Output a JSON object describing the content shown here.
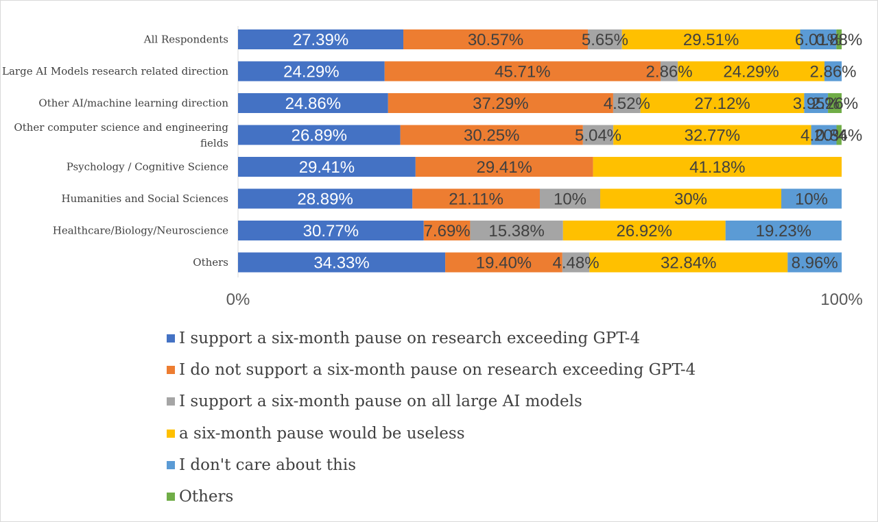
{
  "chart_data": {
    "type": "bar",
    "orientation": "horizontal",
    "stacked": "percent",
    "categories": [
      "All Respondents",
      "Large AI Models research related direction",
      "Other AI/machine learning direction",
      "Other computer science and engineering fields",
      "Psychology / Cognitive Science",
      "Humanities and Social Sciences",
      "Healthcare/Biology/Neuroscience",
      "Others"
    ],
    "series": [
      {
        "name": "I support a six-month pause on research exceeding GPT-4",
        "color": "#4472C4",
        "values": [
          27.39,
          24.29,
          24.86,
          26.89,
          29.41,
          28.89,
          30.77,
          34.33
        ],
        "labels": [
          "27.39%",
          "24.29%",
          "24.86%",
          "26.89%",
          "29.41%",
          "28.89%",
          "30.77%",
          "34.33%"
        ]
      },
      {
        "name": "I do not support a six-month pause on research exceeding GPT-4",
        "color": "#ED7D31",
        "values": [
          30.57,
          45.71,
          37.29,
          30.25,
          29.41,
          21.11,
          7.69,
          19.4
        ],
        "labels": [
          "30.57%",
          "45.71%",
          "37.29%",
          "30.25%",
          "29.41%",
          "21.11%",
          "7.69%",
          "19.40%"
        ]
      },
      {
        "name": "I support a six-month pause on all large AI models",
        "color": "#A5A5A5",
        "values": [
          5.65,
          2.86,
          4.52,
          5.04,
          0,
          10,
          15.38,
          4.48
        ],
        "labels": [
          "5.65%",
          "2.86%",
          "4.52%",
          "5.04%",
          "",
          "10%",
          "15.38%",
          "4.48%"
        ]
      },
      {
        "name": "a six-month pause would be useless",
        "color": "#FFC000",
        "values": [
          29.51,
          24.29,
          27.12,
          32.77,
          41.18,
          30,
          26.92,
          32.84
        ],
        "labels": [
          "29.51%",
          "24.29%",
          "27.12%",
          "32.77%",
          "41.18%",
          "30%",
          "26.92%",
          "32.84%"
        ]
      },
      {
        "name": "I don't care about this",
        "color": "#5B9BD5",
        "values": [
          6.01,
          2.86,
          3.95,
          4.2,
          0,
          10,
          19.23,
          8.96
        ],
        "labels": [
          "6.01%",
          "2.86%",
          "3.95%",
          "4.20%",
          "",
          "10%",
          "19.23%",
          "8.96%"
        ]
      },
      {
        "name": "Others",
        "color": "#70AD47",
        "values": [
          0.88,
          0,
          2.26,
          0.84,
          0,
          0,
          0,
          0
        ],
        "labels": [
          "0.88%",
          "",
          "2.26%",
          "0.84%",
          "",
          "",
          "",
          ""
        ]
      }
    ],
    "xlim": [
      0,
      100
    ],
    "x_ticks": [
      "0%",
      "100%"
    ],
    "label_colors": [
      "#FFFFFF",
      "#404040",
      "#404040",
      "#404040",
      "#404040",
      "#404040"
    ],
    "grid": false,
    "legend_position": "bottom"
  }
}
